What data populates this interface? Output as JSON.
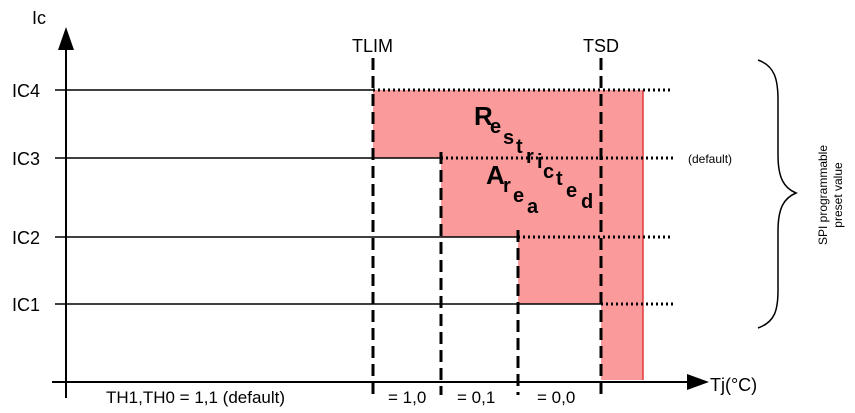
{
  "diagram": {
    "y_axis_label": "Ic",
    "x_axis_label": "Tj(°C)",
    "level_labels": [
      "IC4",
      "IC3",
      "IC2",
      "IC1"
    ],
    "temp_markers": [
      "TLIM",
      "TSD"
    ],
    "default_note": "(default)",
    "restricted_area_letters": [
      "R",
      "e",
      "s",
      "t",
      "r",
      "i",
      "c",
      "t",
      "e",
      "d",
      "A",
      "r",
      "e",
      "a"
    ],
    "spi_label_line1": "SPI programmable",
    "spi_label_line2": "preset value",
    "threshold_labels": {
      "th_default": "TH1,TH0 = 1,1 (default)",
      "th_10": "= 1,0",
      "th_01": "= 0,1",
      "th_00": "= 0,0"
    },
    "colors": {
      "restricted_fill": "#fa9a9a",
      "restricted_edge": "#e33b3b",
      "lines": "#000000"
    }
  }
}
